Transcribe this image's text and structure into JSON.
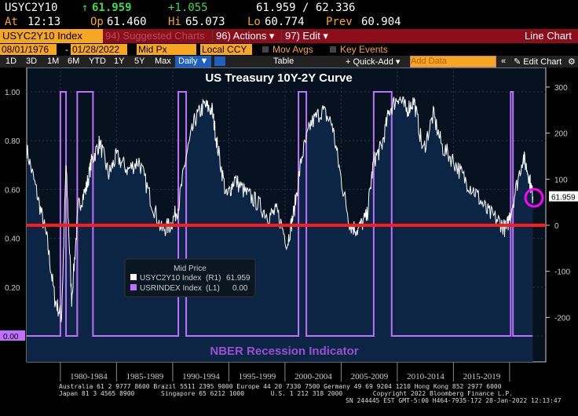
{
  "quote": {
    "ticker": "USYC2Y10",
    "arrow": "↑",
    "last": "61.959",
    "change": "+1.055",
    "bidask": "61.959 / 62.336",
    "at_label": "At",
    "time": "12:13",
    "op_label": "Op",
    "op": "61.460",
    "hi_label": "Hi",
    "hi": "65.073",
    "lo_label": "Lo",
    "lo": "60.774",
    "prev_label": "Prev",
    "prev": "60.904"
  },
  "toolbar": {
    "security": "USYC2Y10 Index",
    "suggested": "94) Suggested Charts",
    "actions": "96) Actions ▾",
    "edit": "97) Edit ▾",
    "chart_type": "Line Chart",
    "start_date": "08/01/1976",
    "end_date": "01/28/2022",
    "dash": "-",
    "field": "Mid Px",
    "currency": "Local CCY",
    "mov_avgs": "Mov Avgs",
    "key_events": "Key Events",
    "periods": [
      "1D",
      "3D",
      "1M",
      "6M",
      "YTD",
      "1Y",
      "5Y",
      "Max"
    ],
    "frequency": "Daily ▼",
    "table": "Table",
    "quick_add": "+ Quick-Add ▾",
    "add_data_placeholder": "Add Data",
    "collapse": "«",
    "edit_chart": "✎ Edit Chart",
    "gear": "⚙"
  },
  "chart_data": {
    "type": "line",
    "title": "US Treasury 10Y-2Y Curve",
    "annotation": "NBER Recession Indicator",
    "legend": {
      "header": "Mid Price",
      "items": [
        {
          "name": "USYC2Y10 Index",
          "axis": "(R1)",
          "value": "61.959",
          "color": "#ffffff"
        },
        {
          "name": "USRINDEX Index",
          "axis": "(L1)",
          "value": "0.00",
          "color": "#c070ff"
        }
      ],
      "placement": "bottom-left"
    },
    "left_axis": {
      "ticks": [
        "1.00",
        "0.80",
        "0.60",
        "0.40",
        "0.20",
        "0.00"
      ],
      "ylim": [
        0,
        1
      ]
    },
    "right_axis": {
      "ticks": [
        "300",
        "200",
        "100",
        "0",
        "-100",
        "-200"
      ],
      "ylim": [
        -250,
        340
      ]
    },
    "x_labels": [
      "1980-1984",
      "1985-1989",
      "1990-1994",
      "1995-1999",
      "2000-2004",
      "2005-2009",
      "2010-2014",
      "2015-2019"
    ],
    "xlim": [
      1977,
      2022.1
    ],
    "last_value_label": "61.959",
    "spread_series": {
      "name": "USYC2Y10 Index",
      "x": [
        1977,
        1978,
        1978.8,
        1979.5,
        1980.1,
        1980.5,
        1981,
        1981.6,
        1982.3,
        1982.8,
        1983.5,
        1984.3,
        1985,
        1986,
        1987,
        1988,
        1989,
        1989.8,
        1990.5,
        1991.2,
        1992,
        1992.8,
        1993.5,
        1994,
        1994.8,
        1995.5,
        1996.5,
        1997.5,
        1998.5,
        1999.3,
        2000.2,
        2000.8,
        2001.5,
        2002.3,
        2003.3,
        2004.2,
        2005,
        2005.8,
        2006.5,
        2007.3,
        2007.9,
        2008.6,
        2009.3,
        2010.1,
        2010.8,
        2011.5,
        2012.3,
        2013.2,
        2014,
        2015,
        2016,
        2017,
        2018,
        2019,
        2019.7,
        2020.3,
        2021.2,
        2021.7,
        2022.07
      ],
      "values": [
        165,
        60,
        -30,
        -160,
        -200,
        130,
        -160,
        40,
        80,
        140,
        180,
        110,
        150,
        120,
        140,
        60,
        -10,
        0,
        40,
        150,
        230,
        260,
        250,
        170,
        60,
        100,
        70,
        50,
        20,
        30,
        -40,
        30,
        150,
        220,
        250,
        220,
        100,
        0,
        -10,
        20,
        140,
        170,
        250,
        280,
        250,
        270,
        160,
        240,
        170,
        140,
        100,
        70,
        30,
        10,
        -10,
        50,
        150,
        110,
        62
      ]
    },
    "recessions": [
      [
        1980.0,
        1980.5
      ],
      [
        1981.5,
        1982.9
      ],
      [
        1990.5,
        1991.2
      ],
      [
        2001.2,
        2001.9
      ],
      [
        2007.9,
        2009.5
      ],
      [
        2020.1,
        2020.3
      ]
    ]
  },
  "footer": {
    "line1": "Australia 61 2 9777 8600 Brazil 5511 2395 9000 Europe 44 20 7330 7500 Germany 49 69 9204 1210 Hong Kong 852 2977 6000",
    "line2": "Japan 81 3 4565 8900       Singapore 65 6212 1000       U.S. 1 212 318 2000        Copyright 2022 Bloomberg Finance L.P.",
    "line3": "SN 244445 EST  GMT-5:00 H464-7935-172 28-Jan-2022 12:13:47"
  }
}
